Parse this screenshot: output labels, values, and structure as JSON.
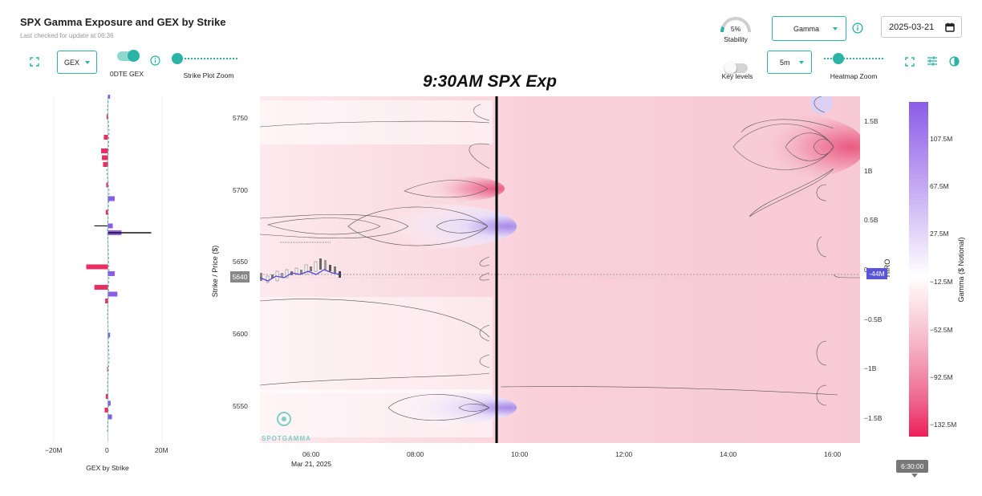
{
  "header": {
    "title": "SPX Gamma Exposure and GEX by Strike",
    "subtitle": "Last checked for update at 06:36"
  },
  "left_controls": {
    "gex_select": "GEX",
    "odte_label": "0DTE GEX",
    "strike_zoom_label": "Strike Plot Zoom"
  },
  "right_controls": {
    "stability_value": "5%",
    "stability_label": "Stability",
    "gamma_select": "Gamma",
    "date_value": "2025-03-21",
    "interval_select": "5m",
    "key_levels_label": "Key levels",
    "heatmap_zoom_label": "Heatmap Zoom"
  },
  "annotation": "9:30AM SPX Exp",
  "gex_panel": {
    "x_ticks": [
      "−20M",
      "0",
      "20M"
    ],
    "x_label": "GEX by Strike"
  },
  "heatmap": {
    "y_label": "Strike / Price ($)",
    "y_ticks": [
      "5750",
      "5700",
      "5650",
      "5600",
      "5550"
    ],
    "x_ticks": [
      "06:00",
      "08:00",
      "10:00",
      "12:00",
      "14:00",
      "16:00"
    ],
    "x_date": "Mar 21, 2025",
    "price_tag": "5640",
    "hiro_label": "HIRO",
    "hiro_ticks": [
      "1.5B",
      "1B",
      "0.5B",
      "0",
      "−0.5B",
      "−1B",
      "−1.5B"
    ],
    "hiro_tag": "-44M",
    "watermark": "SPOTGAMMA",
    "colorbar_title": "Gamma ($ Notional)",
    "colorbar_ticks": [
      "107.5M",
      "67.5M",
      "27.5M",
      "−12.5M",
      "−52.5M",
      "−92.5M",
      "−132.5M"
    ],
    "time_tooltip": "6:30:00"
  },
  "chart_data": {
    "type": "heatmap",
    "title": "SPX Gamma Exposure and GEX by Strike",
    "x_time_range": [
      "05:00",
      "16:30"
    ],
    "y_strike_range": [
      5522,
      5775
    ],
    "current_price": 5640,
    "hiro_range": [
      -1.75,
      1.75
    ],
    "color_range_M": [
      -150,
      130
    ],
    "gex_by_strike": [
      {
        "strike": 5775,
        "gex_M": 0.8
      },
      {
        "strike": 5760,
        "gex_M": -0.5
      },
      {
        "strike": 5745,
        "gex_M": -1.5
      },
      {
        "strike": 5735,
        "gex_M": -2.5
      },
      {
        "strike": 5730,
        "gex_M": -2.2
      },
      {
        "strike": 5725,
        "gex_M": -1.8
      },
      {
        "strike": 5710,
        "gex_M": -0.6
      },
      {
        "strike": 5700,
        "gex_M": 2.5
      },
      {
        "strike": 5690,
        "gex_M": -0.8
      },
      {
        "strike": 5680,
        "gex_M": 1.8
      },
      {
        "strike": 5675,
        "gex_M": 5.0
      },
      {
        "strike": 5650,
        "gex_M": -8.0
      },
      {
        "strike": 5645,
        "gex_M": 2.5
      },
      {
        "strike": 5635,
        "gex_M": -5.0
      },
      {
        "strike": 5630,
        "gex_M": 3.5
      },
      {
        "strike": 5625,
        "gex_M": -1.0
      },
      {
        "strike": 5600,
        "gex_M": 0.8
      },
      {
        "strike": 5575,
        "gex_M": -0.3
      },
      {
        "strike": 5555,
        "gex_M": -0.8
      },
      {
        "strike": 5550,
        "gex_M": 1.0
      },
      {
        "strike": 5545,
        "gex_M": -1.2
      },
      {
        "strike": 5540,
        "gex_M": 1.5
      }
    ],
    "gex_xlim_M": [
      -20,
      20
    ],
    "xlabel": "GEX by Strike",
    "ylabel": "Strike / Price ($)",
    "colorbar_label": "Gamma ($ Notional)"
  }
}
